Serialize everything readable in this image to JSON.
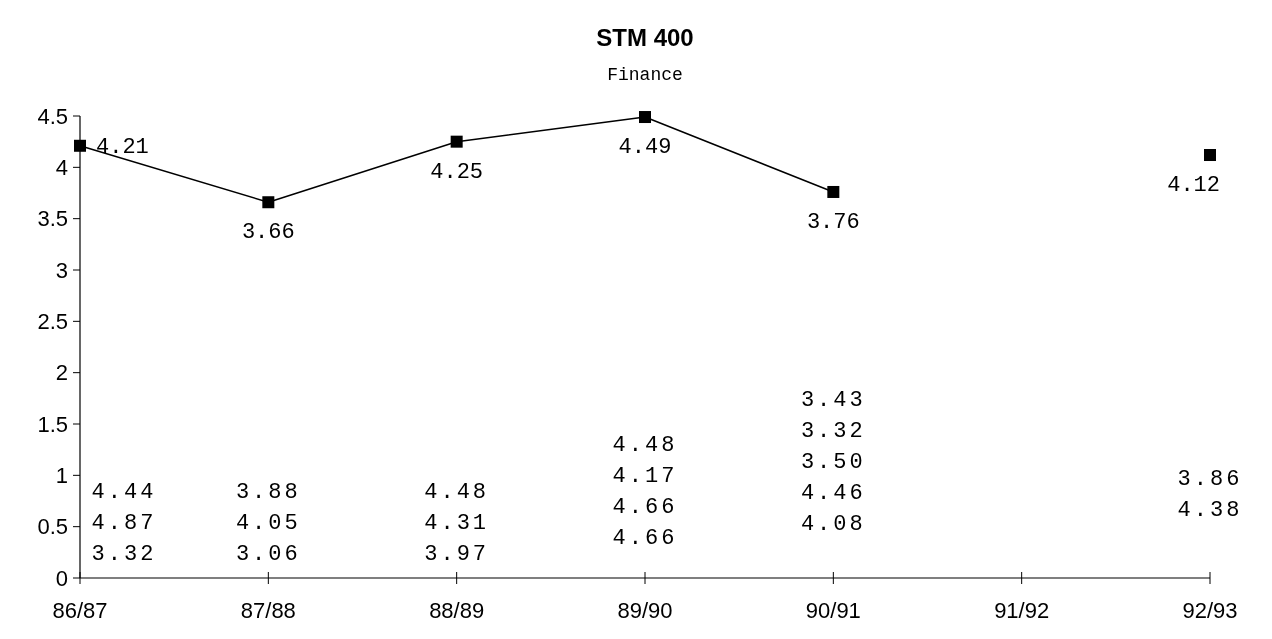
{
  "chart_data": {
    "type": "line",
    "title": "STM 400",
    "subtitle": "Finance",
    "categories": [
      "86/87",
      "87/88",
      "88/89",
      "89/90",
      "90/91",
      "91/92",
      "92/93"
    ],
    "series": [
      {
        "color": "#000000",
        "values": [
          4.21,
          3.66,
          4.25,
          4.49,
          3.76,
          null,
          4.12
        ]
      }
    ],
    "ylim": [
      0,
      4.5
    ],
    "yticks": [
      0,
      0.5,
      1,
      1.5,
      2,
      2.5,
      3,
      3.5,
      4,
      4.5
    ],
    "grid": false,
    "marker": "square",
    "line_style": "solid",
    "data_labels": true,
    "annotations": [
      "4.44\n4.87\n3.32",
      "3.88\n4.05\n3.06",
      "4.48\n4.31\n3.97",
      "4.48\n4.17\n4.66\n4.66",
      "3.43\n3.32\n3.50\n4.46\n4.08",
      "3.86\n4.38"
    ]
  }
}
